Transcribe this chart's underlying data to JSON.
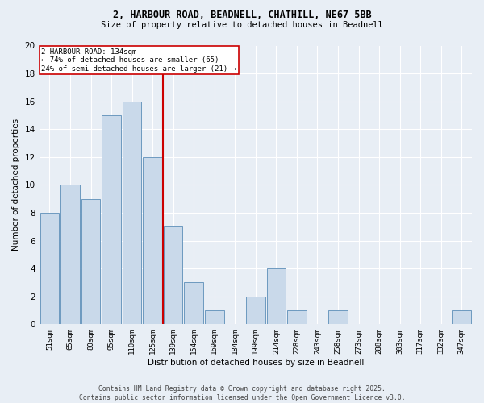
{
  "title_line1": "2, HARBOUR ROAD, BEADNELL, CHATHILL, NE67 5BB",
  "title_line2": "Size of property relative to detached houses in Beadnell",
  "xlabel": "Distribution of detached houses by size in Beadnell",
  "ylabel": "Number of detached properties",
  "bin_labels": [
    "51sqm",
    "65sqm",
    "80sqm",
    "95sqm",
    "110sqm",
    "125sqm",
    "139sqm",
    "154sqm",
    "169sqm",
    "184sqm",
    "199sqm",
    "214sqm",
    "228sqm",
    "243sqm",
    "258sqm",
    "273sqm",
    "288sqm",
    "303sqm",
    "317sqm",
    "332sqm",
    "347sqm"
  ],
  "bin_values": [
    8,
    10,
    9,
    15,
    16,
    12,
    7,
    3,
    1,
    0,
    2,
    4,
    1,
    0,
    1,
    0,
    0,
    0,
    0,
    0,
    1
  ],
  "bar_color": "#c9d9ea",
  "bar_edge_color": "#5b8db8",
  "vline_color": "#cc0000",
  "annotation_text": "2 HARBOUR ROAD: 134sqm\n← 74% of detached houses are smaller (65)\n24% of semi-detached houses are larger (21) →",
  "annotation_box_color": "#ffffff",
  "annotation_box_edge": "#cc0000",
  "background_color": "#e8eef5",
  "footer_text": "Contains HM Land Registry data © Crown copyright and database right 2025.\nContains public sector information licensed under the Open Government Licence v3.0.",
  "ylim": [
    0,
    20
  ],
  "yticks": [
    0,
    2,
    4,
    6,
    8,
    10,
    12,
    14,
    16,
    18,
    20
  ],
  "vline_bin_index": 5.5
}
